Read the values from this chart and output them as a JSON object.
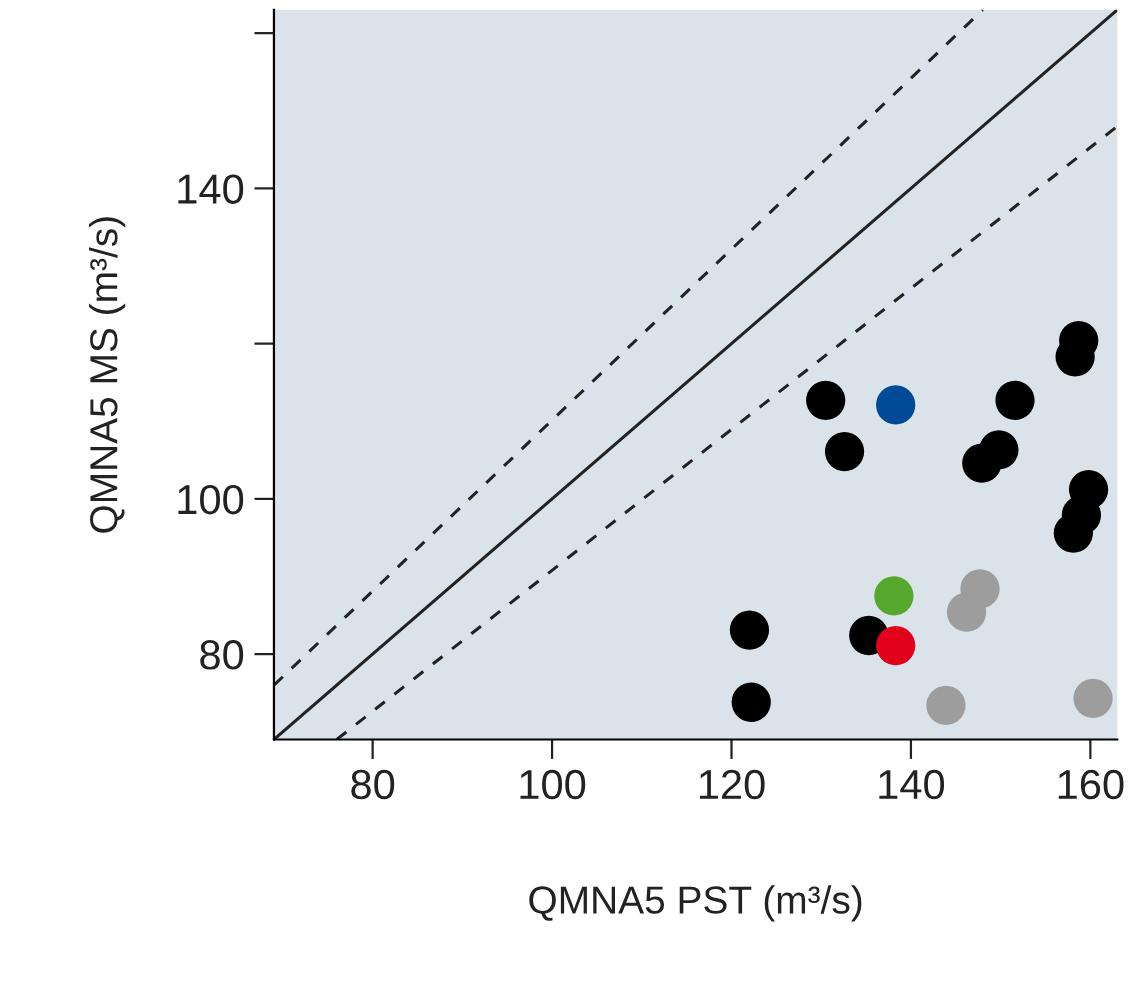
{
  "chart_data": {
    "type": "scatter",
    "xlabel": "QMNA5 PST (m³/s)",
    "ylabel": "QMNA5 MS (m³/s)",
    "xlim": [
      69,
      163
    ],
    "ylim": [
      69,
      163
    ],
    "xticks": [
      80,
      100,
      120,
      140,
      160
    ],
    "yticks": [
      {
        "value": 80,
        "label": "80"
      },
      {
        "value": 100,
        "label": "100"
      },
      {
        "value": 120,
        "label": null
      },
      {
        "value": 140,
        "label": "140"
      },
      {
        "value": 160,
        "label": null
      }
    ],
    "grid": false,
    "series": [
      {
        "type": "line",
        "color": "#222222",
        "line_style": "solid",
        "x": [
          69,
          163
        ],
        "values": [
          69,
          163
        ]
      },
      {
        "type": "line",
        "color": "#222222",
        "line_style": "dashed",
        "x": [
          69,
          148
        ],
        "values": [
          76,
          163
        ]
      },
      {
        "type": "line",
        "color": "#222222",
        "line_style": "dashed",
        "x": [
          76,
          163
        ],
        "values": [
          69,
          148
        ]
      },
      {
        "marker": "circle",
        "color": "#000000",
        "x": [
          130.5,
          132.6,
          122,
          122.2,
          135.3,
          151.6,
          149.8,
          147.9,
          158.7,
          158.3,
          159.8,
          159,
          158.1
        ],
        "values": [
          112.7,
          106.1,
          83.1,
          73.8,
          82.4,
          112.7,
          106.3,
          104.6,
          120.4,
          118.3,
          101.2,
          97.9,
          95.6
        ]
      },
      {
        "marker": "circle",
        "color": "#9d9d9d",
        "x": [
          147.7,
          146.2,
          143.9,
          160.3
        ],
        "values": [
          88.4,
          85.4,
          73.4,
          74.3
        ]
      },
      {
        "marker": "circle",
        "color": "#004a98",
        "x": [
          138.3
        ],
        "values": [
          112.1
        ]
      },
      {
        "marker": "circle",
        "color": "#56a82c",
        "x": [
          138.1
        ],
        "values": [
          87.5
        ]
      },
      {
        "marker": "circle",
        "color": "#e2001a",
        "x": [
          138.3
        ],
        "values": [
          81.1
        ]
      }
    ]
  }
}
